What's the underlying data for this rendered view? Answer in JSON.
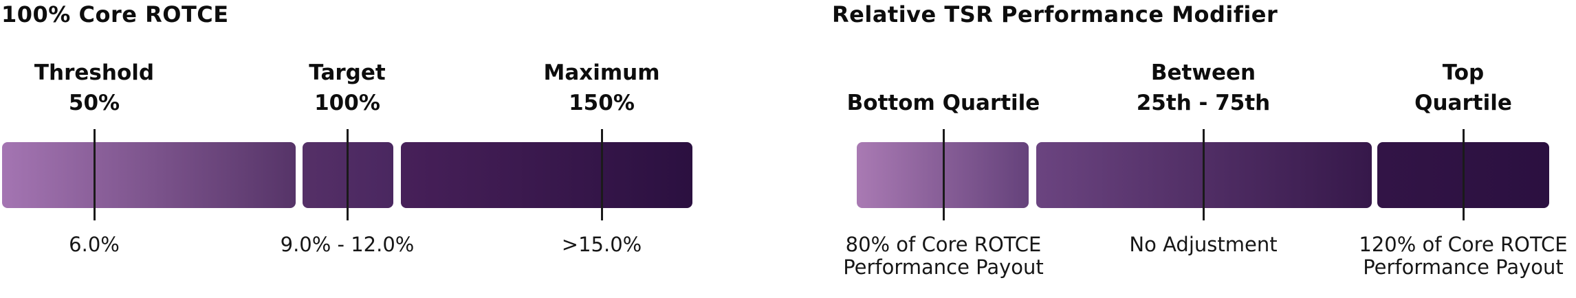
{
  "style": {
    "background": "#ffffff",
    "text_color": "#111111",
    "tick_color": "#1a1a1a"
  },
  "chart_data": [
    {
      "type": "bar",
      "variant": "horizontal-gradient-scale",
      "title": "100% Core ROTCE",
      "legend": "none",
      "grid": false,
      "gradient_range": [
        "#a475b2",
        "#2b1040"
      ],
      "markers": [
        {
          "label_line1": "Threshold",
          "label_line2": "50%",
          "value_line1": "6.0%",
          "value_line2": ""
        },
        {
          "label_line1": "Target",
          "label_line2": "100%",
          "value_line1": "9.0% - 12.0%",
          "value_line2": ""
        },
        {
          "label_line1": "Maximum",
          "label_line2": "150%",
          "value_line1": ">15.0%",
          "value_line2": ""
        }
      ],
      "segments": [
        {
          "color_from": "#a475b2",
          "color_to": "#563468"
        },
        {
          "color_from": "#553067",
          "color_to": "#4a2760"
        },
        {
          "color_from": "#472059",
          "color_to": "#2b1040"
        }
      ]
    },
    {
      "type": "bar",
      "variant": "horizontal-gradient-scale",
      "title": "Relative TSR Performance Modifier",
      "legend": "none",
      "grid": false,
      "gradient_range": [
        "#a97ab3",
        "#2b1040"
      ],
      "markers": [
        {
          "label_line1": "",
          "label_line2": "Bottom Quartile",
          "value_line1": "80% of Core ROTCE",
          "value_line2": "Performance Payout"
        },
        {
          "label_line1": "Between",
          "label_line2": "25th - 75th",
          "value_line1": "No Adjustment",
          "value_line2": ""
        },
        {
          "label_line1": "Top",
          "label_line2": "Quartile",
          "value_line1": "120% of Core ROTCE",
          "value_line2": "Performance Payout"
        }
      ],
      "segments": [
        {
          "color_from": "#a97ab3",
          "color_to": "#65427b"
        },
        {
          "color_from": "#6b4480",
          "color_to": "#36184a"
        },
        {
          "color_from": "#321446",
          "color_to": "#2b1040"
        }
      ]
    }
  ]
}
